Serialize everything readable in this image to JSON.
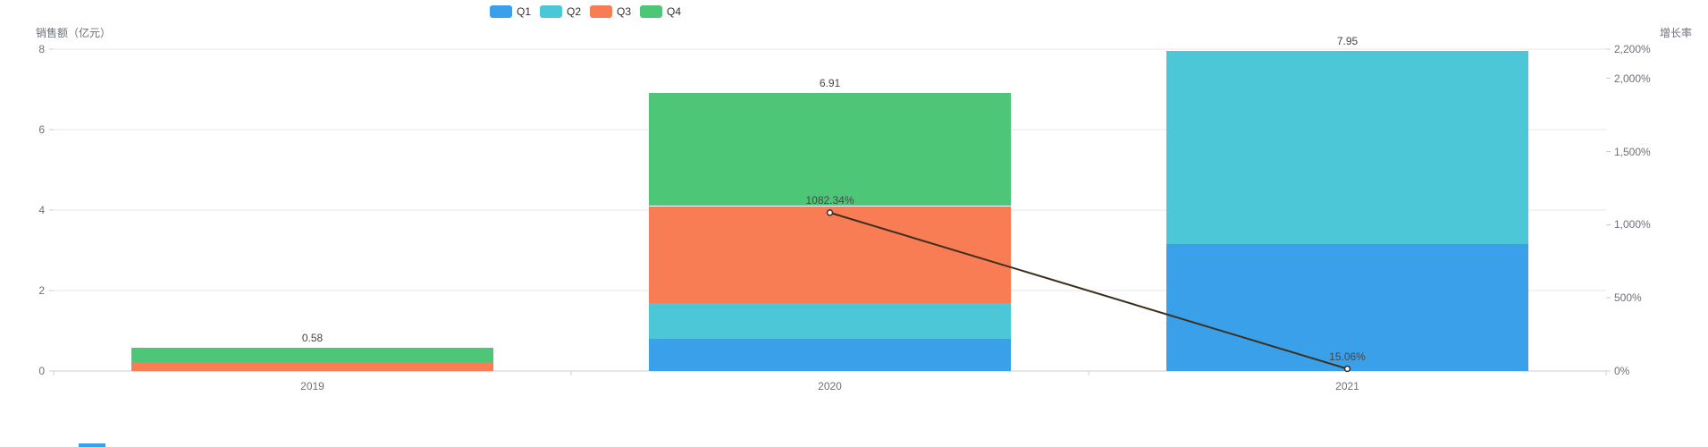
{
  "chart_data": {
    "type": "bar",
    "variant": "stacked-bar-with-line-dual-axis",
    "title": "",
    "categories": [
      "2019",
      "2020",
      "2021"
    ],
    "series": [
      {
        "name": "Q1",
        "type": "bar",
        "stack": "total",
        "color": "#3ba0ea",
        "values": [
          0,
          0.8,
          3.15
        ]
      },
      {
        "name": "Q2",
        "type": "bar",
        "stack": "total",
        "color": "#4cc7d8",
        "values": [
          0,
          0.9,
          4.8
        ]
      },
      {
        "name": "Q3",
        "type": "bar",
        "stack": "total",
        "color": "#f97d54",
        "values": [
          0.23,
          2.4,
          0
        ]
      },
      {
        "name": "Q4",
        "type": "bar",
        "stack": "total",
        "color": "#4dc777",
        "values": [
          0.35,
          2.81,
          0
        ]
      },
      {
        "name": "增长率",
        "type": "line",
        "yaxis": "right",
        "color": "#3c2f1e",
        "values": [
          null,
          1082.34,
          15.06
        ],
        "point_labels": [
          "",
          "1082.34%",
          "15.06%"
        ]
      }
    ],
    "stack_totals": {
      "values": [
        0.58,
        6.91,
        7.95
      ],
      "labels": [
        "0.58",
        "6.91",
        "7.95"
      ]
    },
    "legend": {
      "items": [
        {
          "label": "Q1",
          "color": "#3ba0ea"
        },
        {
          "label": "Q2",
          "color": "#4cc7d8"
        },
        {
          "label": "Q3",
          "color": "#f97d54"
        },
        {
          "label": "Q4",
          "color": "#4dc777"
        }
      ]
    },
    "left_axis": {
      "name": "销售额（亿元）",
      "min": 0,
      "max": 8,
      "ticks": [
        0,
        2,
        4,
        6,
        8
      ],
      "tick_labels": [
        "0",
        "2",
        "4",
        "6",
        "8"
      ]
    },
    "right_axis": {
      "name": "增长率",
      "min": 0,
      "max": 2200,
      "ticks": [
        0,
        500,
        1000,
        1500,
        2000,
        2200
      ],
      "tick_labels": [
        "0%",
        "500%",
        "1,000%",
        "1,500%",
        "2,000%",
        "2,200%"
      ]
    },
    "grid": true,
    "legend_position": "top"
  },
  "colors": {
    "background": "#ffffff",
    "axis_text": "#6E7079",
    "axis_line": "#c9cdd4",
    "grid_line": "#e4e7ed",
    "label_text": "#464646",
    "clipped_element": "#3ba0ea"
  }
}
